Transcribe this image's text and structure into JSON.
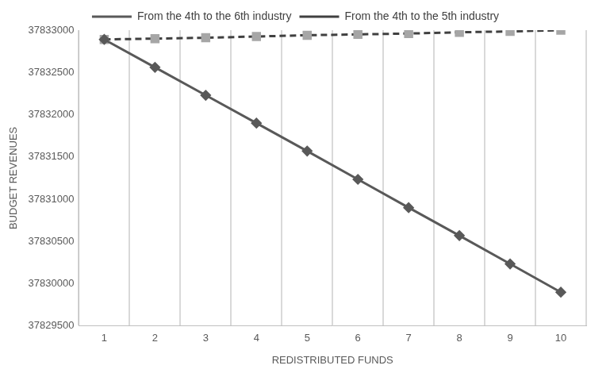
{
  "chart_data": {
    "type": "line",
    "x_label": "REDISTRIBUTED FUNDS",
    "y_label": "BUDGET REVENUES",
    "categories": [
      "1",
      "2",
      "3",
      "4",
      "5",
      "6",
      "7",
      "8",
      "9",
      "10"
    ],
    "series": [
      {
        "name": "From the 4th to the 6th industry",
        "color": "#595959",
        "marker": "diamond",
        "line_style": "solid",
        "values": [
          37832890,
          37832560,
          37832230,
          37831900,
          37831570,
          37831235,
          37830900,
          37830570,
          37830235,
          37829900
        ]
      },
      {
        "name": "From the 4th to the 5th industry",
        "color": "#404040",
        "marker": "square",
        "line_style": "dashed",
        "values": [
          37832890,
          37832900,
          37832910,
          37832925,
          37832940,
          37832950,
          37832960,
          37832975,
          37832985,
          37833000
        ]
      }
    ],
    "ylim": [
      37829500,
      37833000
    ],
    "yticks": [
      37829500,
      37830000,
      37830500,
      37831000,
      37831500,
      37832000,
      37832500,
      37833000
    ],
    "grid": "x",
    "legend": "top"
  }
}
